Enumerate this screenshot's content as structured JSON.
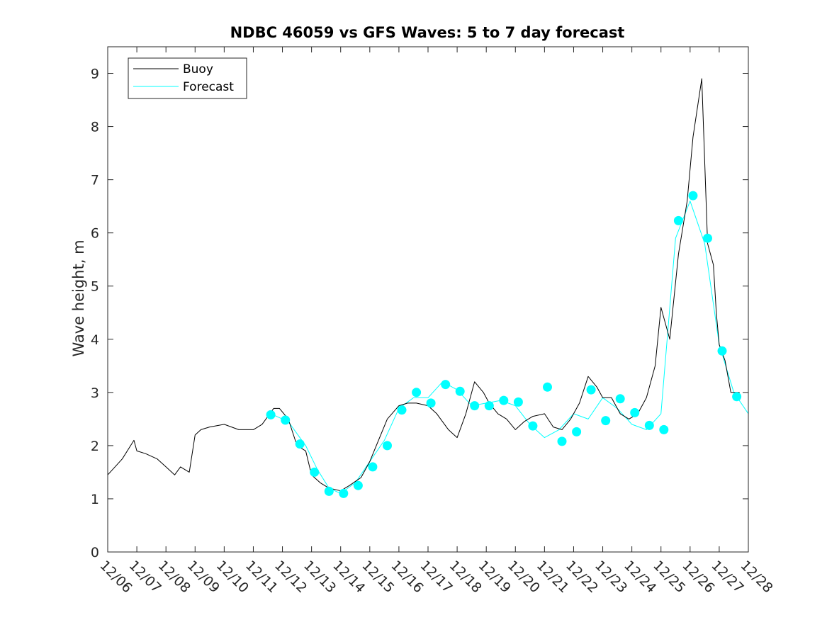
{
  "chart_data": {
    "type": "line",
    "title": "NDBC 46059 vs GFS Waves: 5 to 7 day forecast",
    "xlabel": "",
    "ylabel": "Wave height, m",
    "x_unit": "days since 12/06",
    "xlim": [
      0,
      22
    ],
    "ylim": [
      0,
      9.5
    ],
    "yticks": [
      0,
      1,
      2,
      3,
      4,
      5,
      6,
      7,
      8,
      9
    ],
    "xticks": [
      0,
      1,
      2,
      3,
      4,
      5,
      6,
      7,
      8,
      9,
      10,
      11,
      12,
      13,
      14,
      15,
      16,
      17,
      18,
      19,
      20,
      21,
      22
    ],
    "xtick_labels": [
      "12/06",
      "12/07",
      "12/08",
      "12/09",
      "12/10",
      "12/11",
      "12/12",
      "12/13",
      "12/14",
      "12/15",
      "12/16",
      "12/17",
      "12/18",
      "12/19",
      "12/20",
      "12/21",
      "12/22",
      "12/23",
      "12/24",
      "12/25",
      "12/26",
      "12/27",
      "12/28"
    ],
    "legend": {
      "position": "top-left",
      "entries": [
        "Buoy",
        "Forecast"
      ]
    },
    "colors": {
      "buoy": "#000000",
      "forecast": "#00ffff",
      "marker": "#00ffff"
    },
    "series": [
      {
        "name": "Buoy",
        "x": [
          0,
          0.5,
          0.9,
          1.0,
          1.3,
          1.5,
          1.7,
          2.0,
          2.3,
          2.5,
          2.8,
          3.0,
          3.2,
          3.5,
          4.0,
          4.5,
          5.0,
          5.3,
          5.7,
          5.9,
          6.2,
          6.5,
          6.8,
          7.0,
          7.3,
          7.6,
          8.0,
          8.3,
          8.7,
          9.0,
          9.3,
          9.6,
          10.0,
          10.3,
          10.6,
          11.0,
          11.3,
          11.7,
          12.0,
          12.3,
          12.6,
          12.9,
          13.1,
          13.4,
          13.7,
          14.0,
          14.3,
          14.6,
          15.0,
          15.3,
          15.6,
          15.9,
          16.2,
          16.5,
          16.8,
          17.0,
          17.3,
          17.6,
          17.9,
          18.2,
          18.5,
          18.8,
          19.0,
          19.3,
          19.6,
          19.9,
          20.1,
          20.4,
          20.6,
          20.8,
          20.9,
          21.0,
          21.2,
          21.4,
          21.7
        ],
        "y": [
          1.45,
          1.75,
          2.1,
          1.9,
          1.85,
          1.8,
          1.75,
          1.6,
          1.45,
          1.6,
          1.5,
          2.2,
          2.3,
          2.35,
          2.4,
          2.3,
          2.3,
          2.4,
          2.7,
          2.7,
          2.5,
          2.0,
          1.9,
          1.45,
          1.3,
          1.2,
          1.15,
          1.25,
          1.4,
          1.7,
          2.1,
          2.5,
          2.75,
          2.8,
          2.8,
          2.75,
          2.6,
          2.3,
          2.15,
          2.6,
          3.2,
          3.0,
          2.8,
          2.6,
          2.5,
          2.3,
          2.45,
          2.55,
          2.6,
          2.35,
          2.3,
          2.5,
          2.8,
          3.3,
          3.1,
          2.9,
          2.9,
          2.6,
          2.5,
          2.6,
          2.9,
          3.5,
          4.6,
          4.0,
          5.6,
          6.6,
          7.8,
          8.9,
          5.8,
          5.4,
          4.5,
          3.9,
          3.6,
          3.0,
          3.0
        ]
      },
      {
        "name": "Forecast",
        "x": [
          5.6,
          6.2,
          6.8,
          7.2,
          7.6,
          8.0,
          8.5,
          9.0,
          9.5,
          10.0,
          10.5,
          11.0,
          11.5,
          12.0,
          12.5,
          13.0,
          13.5,
          14.0,
          14.5,
          15.0,
          15.5,
          16.0,
          16.5,
          17.0,
          17.5,
          18.0,
          18.5,
          19.0,
          19.5,
          20.0,
          20.5,
          21.0,
          21.5,
          22.0
        ],
        "y": [
          2.6,
          2.45,
          2.0,
          1.55,
          1.2,
          1.1,
          1.3,
          1.7,
          2.1,
          2.7,
          2.9,
          2.9,
          3.2,
          3.05,
          2.75,
          2.8,
          2.85,
          2.75,
          2.4,
          2.15,
          2.3,
          2.6,
          2.5,
          2.9,
          2.7,
          2.4,
          2.3,
          2.6,
          5.9,
          6.6,
          5.8,
          3.9,
          3.0,
          2.6
        ]
      }
    ],
    "markers": {
      "x": [
        5.6,
        6.1,
        6.6,
        7.1,
        7.6,
        8.1,
        8.6,
        9.1,
        9.6,
        10.1,
        10.6,
        11.1,
        11.6,
        12.1,
        12.6,
        13.1,
        13.6,
        14.1,
        14.6,
        15.1,
        15.6,
        16.1,
        16.6,
        17.1,
        17.6,
        18.1,
        18.6,
        19.1,
        19.6,
        20.1,
        20.6,
        21.1,
        21.6
      ],
      "y": [
        2.58,
        2.48,
        2.03,
        1.5,
        1.14,
        1.1,
        1.25,
        1.6,
        2.0,
        2.67,
        3.0,
        2.8,
        3.15,
        3.02,
        2.75,
        2.75,
        2.85,
        2.82,
        2.37,
        3.1,
        2.08,
        2.26,
        3.05,
        2.47,
        2.88,
        2.62,
        2.38,
        2.3,
        6.23,
        6.7,
        5.9,
        3.78,
        2.92
      ]
    }
  }
}
